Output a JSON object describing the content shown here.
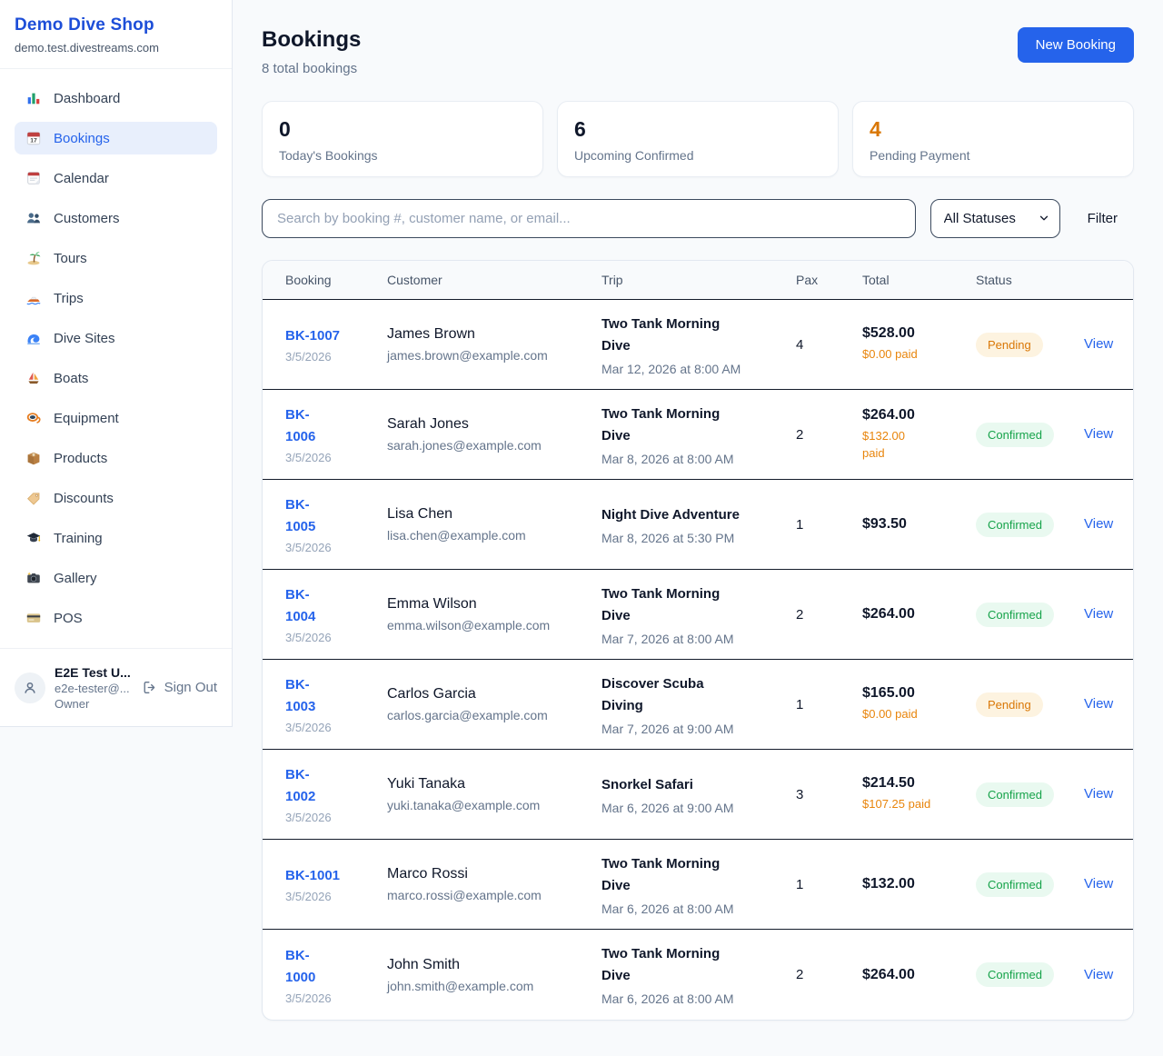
{
  "sidebar": {
    "title": "Demo Dive Shop",
    "domain": "demo.test.divestreams.com",
    "items": [
      {
        "label": "Dashboard",
        "icon": "bar-chart"
      },
      {
        "label": "Bookings",
        "icon": "calendar-date",
        "active": true
      },
      {
        "label": "Calendar",
        "icon": "calendar-pad"
      },
      {
        "label": "Customers",
        "icon": "people"
      },
      {
        "label": "Tours",
        "icon": "island"
      },
      {
        "label": "Trips",
        "icon": "speedboat"
      },
      {
        "label": "Dive Sites",
        "icon": "wave"
      },
      {
        "label": "Boats",
        "icon": "sailboat"
      },
      {
        "label": "Equipment",
        "icon": "diving-mask"
      },
      {
        "label": "Products",
        "icon": "package"
      },
      {
        "label": "Discounts",
        "icon": "tag"
      },
      {
        "label": "Training",
        "icon": "graduation-cap"
      },
      {
        "label": "Gallery",
        "icon": "camera"
      },
      {
        "label": "POS",
        "icon": "credit-card"
      }
    ],
    "user": {
      "name": "E2E Test U...",
      "email": "e2e-tester@...",
      "role": "Owner",
      "signout": "Sign Out"
    }
  },
  "header": {
    "title": "Bookings",
    "subtitle": "8 total bookings",
    "new_booking": "New Booking"
  },
  "stats": [
    {
      "value": "0",
      "label": "Today's Bookings",
      "color": "#0f172a"
    },
    {
      "value": "6",
      "label": "Upcoming Confirmed",
      "color": "#0f172a"
    },
    {
      "value": "4",
      "label": "Pending Payment",
      "color": "#d97706"
    }
  ],
  "filters": {
    "search_placeholder": "Search by booking #, customer name, or email...",
    "status_select": "All Statuses",
    "filter_label": "Filter"
  },
  "status_colors": {
    "Pending": {
      "fg": "#d97706",
      "bg": "#fdf3e0"
    },
    "Confirmed": {
      "fg": "#16a34a",
      "bg": "#e9f9f0"
    }
  },
  "table": {
    "columns": [
      "Booking",
      "Customer",
      "Trip",
      "Pax",
      "Total",
      "Status"
    ],
    "view_label": "View",
    "rows": [
      {
        "id": "BK-1007",
        "date": "3/5/2026",
        "customer": "James Brown",
        "email": "james.brown@example.com",
        "trip": "Two Tank Morning\nDive",
        "trip_date": "Mar 12, 2026 at 8:00 AM",
        "pax": "4",
        "total": "$528.00",
        "paid": "$0.00 paid",
        "status": "Pending"
      },
      {
        "id": "BK-\n1006",
        "date": "3/5/2026",
        "customer": "Sarah Jones",
        "email": "sarah.jones@example.com",
        "trip": "Two Tank Morning\nDive",
        "trip_date": "Mar 8, 2026 at 8:00 AM",
        "pax": "2",
        "total": "$264.00",
        "paid": "$132.00\npaid",
        "status": "Confirmed"
      },
      {
        "id": "BK-\n1005",
        "date": "3/5/2026",
        "customer": "Lisa Chen",
        "email": "lisa.chen@example.com",
        "trip": "Night Dive Adventure",
        "trip_date": "Mar 8, 2026 at 5:30 PM",
        "pax": "1",
        "total": "$93.50",
        "paid": "",
        "status": "Confirmed"
      },
      {
        "id": "BK-\n1004",
        "date": "3/5/2026",
        "customer": "Emma Wilson",
        "email": "emma.wilson@example.com",
        "trip": "Two Tank Morning\nDive",
        "trip_date": "Mar 7, 2026 at 8:00 AM",
        "pax": "2",
        "total": "$264.00",
        "paid": "",
        "status": "Confirmed"
      },
      {
        "id": "BK-\n1003",
        "date": "3/5/2026",
        "customer": "Carlos Garcia",
        "email": "carlos.garcia@example.com",
        "trip": "Discover Scuba\nDiving",
        "trip_date": "Mar 7, 2026 at 9:00 AM",
        "pax": "1",
        "total": "$165.00",
        "paid": "$0.00 paid",
        "status": "Pending"
      },
      {
        "id": "BK-\n1002",
        "date": "3/5/2026",
        "customer": "Yuki Tanaka",
        "email": "yuki.tanaka@example.com",
        "trip": "Snorkel Safari",
        "trip_date": "Mar 6, 2026 at 9:00 AM",
        "pax": "3",
        "total": "$214.50",
        "paid": "$107.25 paid",
        "status": "Confirmed"
      },
      {
        "id": "BK-1001",
        "date": "3/5/2026",
        "customer": "Marco Rossi",
        "email": "marco.rossi@example.com",
        "trip": "Two Tank Morning\nDive",
        "trip_date": "Mar 6, 2026 at 8:00 AM",
        "pax": "1",
        "total": "$132.00",
        "paid": "",
        "status": "Confirmed"
      },
      {
        "id": "BK-\n1000",
        "date": "3/5/2026",
        "customer": "John Smith",
        "email": "john.smith@example.com",
        "trip": "Two Tank Morning\nDive",
        "trip_date": "Mar 6, 2026 at 8:00 AM",
        "pax": "2",
        "total": "$264.00",
        "paid": "",
        "status": "Confirmed"
      }
    ]
  }
}
